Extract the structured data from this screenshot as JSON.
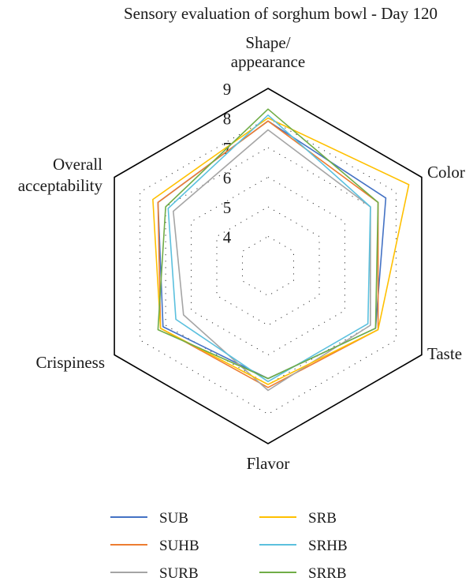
{
  "chart_data": {
    "type": "radar",
    "title": "Sensory evaluation of sorghum bowl - Day 120",
    "axes": [
      "Shape/ appearance",
      "Color",
      "Taste",
      "Flavor",
      "Crispiness",
      "Overall acceptability"
    ],
    "axis_label_lines": [
      [
        "Shape/",
        "appearance"
      ],
      [
        "Color"
      ],
      [
        "Taste"
      ],
      [
        "Flavor"
      ],
      [
        "Crispiness"
      ],
      [
        "Overall",
        "acceptability"
      ]
    ],
    "r_min": 3,
    "r_max": 9,
    "ticks": [
      4,
      5,
      6,
      7,
      8,
      9
    ],
    "grid": "dotted",
    "series": [
      {
        "name": "SUB",
        "color": "#4472c4",
        "values": [
          7.9,
          7.6,
          7.2,
          6.8,
          7.1,
          7.3
        ]
      },
      {
        "name": "SUHB",
        "color": "#ed7d31",
        "values": [
          7.9,
          7.3,
          7.3,
          7.1,
          7.2,
          7.3
        ]
      },
      {
        "name": "SURB",
        "color": "#a5a5a5",
        "values": [
          7.6,
          7.0,
          7.0,
          7.2,
          6.3,
          6.7
        ]
      },
      {
        "name": "SRB",
        "color": "#ffc000",
        "values": [
          8.0,
          8.5,
          7.3,
          7.0,
          7.2,
          7.5
        ]
      },
      {
        "name": "SRHB",
        "color": "#5bc0de",
        "values": [
          8.1,
          7.0,
          6.9,
          6.9,
          6.6,
          6.9
        ]
      },
      {
        "name": "SRRB",
        "color": "#70ad47",
        "values": [
          8.3,
          7.3,
          7.2,
          6.8,
          7.3,
          7.0
        ]
      }
    ],
    "legend_position": "bottom"
  }
}
